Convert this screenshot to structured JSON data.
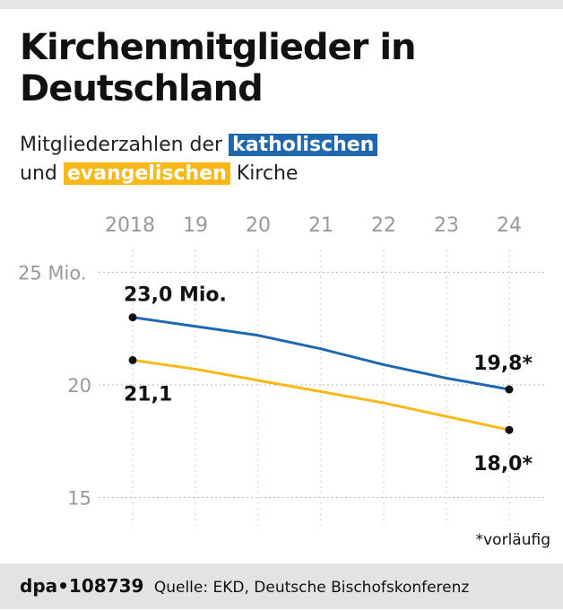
{
  "title": "Kirchenmitglieder in Deutschland",
  "subtitle": {
    "pre": "Mitgliederzahlen der",
    "blue": "katholischen",
    "mid": "und",
    "yellow": "evangelischen",
    "post": "Kirche"
  },
  "note": "*vorläufig",
  "footer": {
    "agency": "dpa•108739",
    "source": "Quelle: EKD, Deutsche Bischofskonferenz"
  },
  "colors": {
    "katholisch": "#1f68b0",
    "evangelisch": "#f7b91a"
  },
  "chart_data": {
    "type": "line",
    "x": [
      2018,
      2019,
      2020,
      2021,
      2022,
      2023,
      2024
    ],
    "x_tick_labels": [
      "2018",
      "19",
      "20",
      "21",
      "22",
      "23",
      "24"
    ],
    "y_tick_labels": [
      "25 Mio.",
      "20",
      "15"
    ],
    "y_ticks": [
      25,
      20,
      15
    ],
    "ylim": [
      14.5,
      26
    ],
    "grid": true,
    "series": [
      {
        "values": [
          23.0,
          22.6,
          22.2,
          21.6,
          20.9,
          20.3,
          19.8
        ],
        "color": "#1f68b0",
        "labels": {
          "first": "23,0 Mio.",
          "last": "19,8*"
        }
      },
      {
        "values": [
          21.1,
          20.7,
          20.2,
          19.7,
          19.2,
          18.6,
          18.0
        ],
        "color": "#f7b91a",
        "labels": {
          "first": "21,1",
          "last": "18,0*"
        }
      }
    ]
  }
}
